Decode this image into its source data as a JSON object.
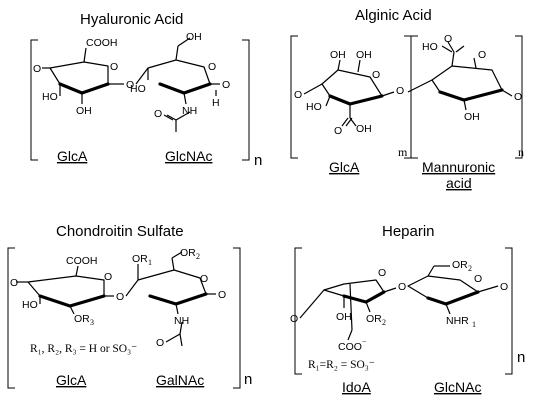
{
  "panels": {
    "hyaluronic": {
      "title": "Hyaluronic Acid",
      "unit_left": "GlcA",
      "unit_right": "GlcNAc",
      "repeat": "n",
      "atoms": {
        "cooh": "COOH",
        "ho1": "HO",
        "oh1": "OH",
        "o_ring1": "O",
        "o_link": "O",
        "ho2": "HO",
        "oh_ch2": "OH",
        "o_ring2": "O",
        "nh": "NH",
        "h": "H",
        "o_left": "O",
        "o_acetyl": "O",
        "o_right": "O"
      }
    },
    "alginic": {
      "title": "Alginic Acid",
      "unit_left": "GlcA",
      "unit_right_line1": "Mannuronic",
      "unit_right_line2": "acid",
      "repeat_m": "m",
      "repeat_n": "n",
      "atoms": {
        "o_left": "O",
        "ho1": "HO",
        "oh_top1": "OH",
        "oh_top2": "OH",
        "o_ring1": "O",
        "o_acid1": "O",
        "oh_acid1": "OH",
        "o_link": "O",
        "ho_acid2": "HO",
        "o_acid2": "O",
        "o_ring2": "O",
        "oh2": "OH",
        "o_right": "O"
      }
    },
    "chondroitin": {
      "title": "Chondroitin Sulfate",
      "unit_left": "GlcA",
      "unit_right": "GalNAc",
      "repeat": "n",
      "note_main": "R₁, R₂, R₃ = H or SO₃⁻",
      "atoms": {
        "cooh": "COOH",
        "or1": "OR",
        "or1_sub": "1",
        "or2": "OR",
        "or2_sub": "2",
        "o_ring1": "O",
        "o_ring2": "O",
        "o_left": "O",
        "ho": "HO",
        "or3": "OR",
        "or3_sub": "3",
        "o_link": "O",
        "nh": "NH",
        "o_right": "O",
        "o_acetyl": "O"
      }
    },
    "heparin": {
      "title": "Heparin",
      "unit_left": "IdoA",
      "unit_right": "GlcNAc",
      "repeat": "n",
      "note_main": "R₁=R₂ = SO₃⁻",
      "atoms": {
        "or2_top": "OR",
        "or2_top_sub": "2",
        "o_ring1": "O",
        "o_ring2": "O",
        "o_left": "O",
        "o_link": "O",
        "o_right": "O",
        "oh": "OH",
        "or2": "OR",
        "or2_sub": "2",
        "coo": "COO",
        "coo_charge": "−",
        "nhr": "NHR",
        "nhr_sub": "1"
      }
    }
  }
}
